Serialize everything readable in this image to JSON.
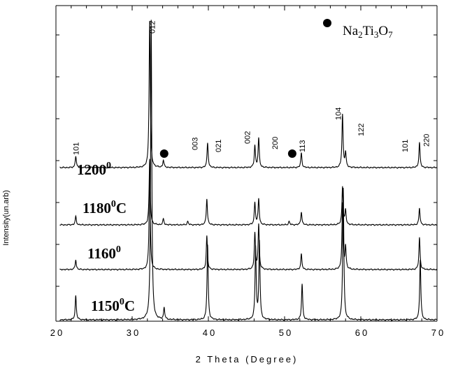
{
  "chart_data": {
    "type": "line",
    "xlabel": "2 Theta (Degree)",
    "ylabel": "Intensity(un.arb)",
    "xlim": [
      20,
      70
    ],
    "xticks": [
      20,
      30,
      40,
      50,
      60,
      70
    ],
    "yticks_labeled": false,
    "grid": false,
    "legend": {
      "position": "top-right",
      "marker": "filled-circle",
      "label_parts": [
        "Na",
        "2",
        "Ti",
        "3",
        "O",
        "7"
      ]
    },
    "series": [
      {
        "label_parts": [
          "1200",
          "0",
          ""
        ],
        "peaks": [
          [
            22.6,
            0.08
          ],
          [
            32.3,
            1.0
          ],
          [
            34.1,
            0.05
          ],
          [
            39.9,
            0.17
          ],
          [
            46.1,
            0.15
          ],
          [
            46.6,
            0.2
          ],
          [
            52.2,
            0.1
          ],
          [
            57.6,
            0.36
          ],
          [
            58.0,
            0.1
          ],
          [
            67.7,
            0.17
          ]
        ]
      },
      {
        "label_parts": [
          "1180",
          "0",
          "C"
        ],
        "peaks": [
          [
            22.6,
            0.07
          ],
          [
            32.3,
            0.55
          ],
          [
            34.1,
            0.05
          ],
          [
            37.3,
            0.03
          ],
          [
            39.8,
            0.22
          ],
          [
            46.1,
            0.19
          ],
          [
            46.6,
            0.22
          ],
          [
            50.6,
            0.03
          ],
          [
            52.2,
            0.11
          ],
          [
            57.6,
            0.32
          ],
          [
            58.0,
            0.12
          ],
          [
            67.7,
            0.14
          ]
        ]
      },
      {
        "label_parts": [
          "1160",
          "0",
          ""
        ],
        "peaks": [
          [
            22.6,
            0.07
          ],
          [
            32.3,
            0.72
          ],
          [
            39.8,
            0.24
          ],
          [
            46.1,
            0.26
          ],
          [
            46.6,
            0.32
          ],
          [
            52.2,
            0.11
          ],
          [
            57.6,
            0.47
          ],
          [
            58.0,
            0.16
          ],
          [
            67.7,
            0.23
          ]
        ]
      },
      {
        "label_parts": [
          "1150",
          "0",
          "C"
        ],
        "peaks": [
          [
            22.6,
            0.08
          ],
          [
            32.5,
            1.0
          ],
          [
            34.2,
            0.04
          ],
          [
            39.9,
            0.25
          ],
          [
            46.2,
            0.24
          ],
          [
            46.7,
            0.26
          ],
          [
            52.3,
            0.12
          ],
          [
            57.7,
            0.44
          ],
          [
            67.8,
            0.2
          ]
        ]
      }
    ],
    "markers": [
      [
        34.2,
        "1200"
      ],
      [
        51.0,
        "1200"
      ]
    ],
    "peak_labels": [
      {
        "text": "101",
        "x": 22.6
      },
      {
        "text": "012",
        "x": 32.6
      },
      {
        "text": "003",
        "x": 38.2
      },
      {
        "text": "021",
        "x": 41.3
      },
      {
        "text": "002",
        "x": 45.1
      },
      {
        "text": "200",
        "x": 48.7
      },
      {
        "text": "113",
        "x": 52.3
      },
      {
        "text": "104",
        "x": 57.0
      },
      {
        "text": "122",
        "x": 60.0
      },
      {
        "text": "101",
        "x": 65.8
      },
      {
        "text": "220",
        "x": 68.6
      }
    ]
  }
}
